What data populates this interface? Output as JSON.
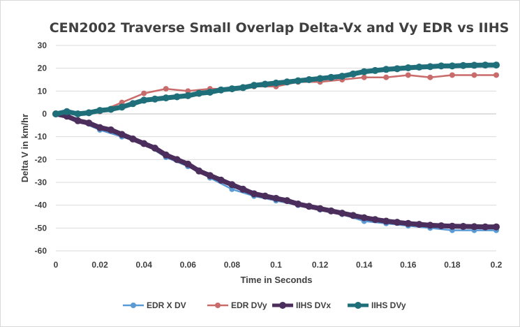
{
  "chart_data": {
    "type": "line",
    "title": "CEN2002 Traverse Small Overlap Delta-Vx and Vy EDR vs IIHS",
    "xlabel": "Time in Seconds",
    "ylabel": "Delta V in km/hr",
    "xlim": [
      0,
      0.2
    ],
    "ylim": [
      -60,
      30
    ],
    "x_ticks": [
      0,
      0.02,
      0.04,
      0.06,
      0.08,
      0.1,
      0.12,
      0.14,
      0.16,
      0.18,
      0.2
    ],
    "x_tick_labels": [
      "0",
      "0.02",
      "0.04",
      "0.06",
      "0.08",
      "0.1",
      "0.12",
      "0.14",
      "0.16",
      "0.18",
      "0.2"
    ],
    "y_ticks": [
      -60,
      -50,
      -40,
      -30,
      -20,
      -10,
      0,
      10,
      20,
      30
    ],
    "y_tick_labels": [
      "-60",
      "-50",
      "-40",
      "-30",
      "-20",
      "-10",
      "0",
      "10",
      "20",
      "30"
    ],
    "grid": true,
    "legend_position": "bottom",
    "series": [
      {
        "name": "EDR X DV",
        "color": "#5b9bd5",
        "style": "line-markers",
        "x": [
          0,
          0.01,
          0.02,
          0.03,
          0.04,
          0.05,
          0.06,
          0.07,
          0.08,
          0.09,
          0.1,
          0.11,
          0.12,
          0.13,
          0.14,
          0.15,
          0.16,
          0.17,
          0.18,
          0.19,
          0.2
        ],
        "values": [
          0,
          -3,
          -7,
          -10,
          -13,
          -19,
          -23,
          -28,
          -33,
          -36,
          -38,
          -40,
          -42,
          -44,
          -47,
          -48,
          -49,
          -50,
          -51,
          -51,
          -51
        ]
      },
      {
        "name": "EDR DVy",
        "color": "#c96b6b",
        "style": "line-markers",
        "x": [
          0,
          0.01,
          0.02,
          0.03,
          0.04,
          0.05,
          0.06,
          0.07,
          0.08,
          0.09,
          0.1,
          0.11,
          0.12,
          0.13,
          0.14,
          0.15,
          0.16,
          0.17,
          0.18,
          0.19,
          0.2
        ],
        "values": [
          0,
          0,
          1,
          5,
          9,
          11,
          10,
          11,
          11,
          12,
          12,
          14,
          14,
          15,
          16,
          16,
          17,
          16,
          17,
          17,
          17
        ]
      },
      {
        "name": "IIHS DVx",
        "color": "#4b2e5c",
        "style": "thick-markers",
        "x": [
          0,
          0.005,
          0.01,
          0.015,
          0.02,
          0.025,
          0.03,
          0.035,
          0.04,
          0.045,
          0.05,
          0.055,
          0.06,
          0.065,
          0.07,
          0.075,
          0.08,
          0.085,
          0.09,
          0.095,
          0.1,
          0.105,
          0.11,
          0.115,
          0.12,
          0.125,
          0.13,
          0.135,
          0.14,
          0.145,
          0.15,
          0.155,
          0.16,
          0.165,
          0.17,
          0.175,
          0.18,
          0.185,
          0.19,
          0.195,
          0.2
        ],
        "values": [
          0,
          -1,
          -3,
          -4,
          -6,
          -7,
          -9,
          -11,
          -13,
          -15,
          -18,
          -20,
          -22,
          -25,
          -27,
          -29,
          -31,
          -33,
          -35,
          -36,
          -37,
          -38,
          -39.5,
          -40.5,
          -41.5,
          -42.5,
          -43.5,
          -44.5,
          -45.5,
          -46.3,
          -47,
          -47.5,
          -48,
          -48.4,
          -48.8,
          -49,
          -49.2,
          -49.3,
          -49.4,
          -49.5,
          -49.5
        ]
      },
      {
        "name": "IIHS DVy",
        "color": "#1f6f7a",
        "style": "thick-markers",
        "x": [
          0,
          0.005,
          0.01,
          0.015,
          0.02,
          0.025,
          0.03,
          0.035,
          0.04,
          0.045,
          0.05,
          0.055,
          0.06,
          0.065,
          0.07,
          0.075,
          0.08,
          0.085,
          0.09,
          0.095,
          0.1,
          0.105,
          0.11,
          0.115,
          0.12,
          0.125,
          0.13,
          0.135,
          0.14,
          0.145,
          0.15,
          0.155,
          0.16,
          0.165,
          0.17,
          0.175,
          0.18,
          0.185,
          0.19,
          0.195,
          0.2
        ],
        "values": [
          0,
          1,
          0,
          0.5,
          1.5,
          2,
          3,
          4.5,
          6,
          6.5,
          7,
          7.5,
          8,
          9,
          9.5,
          10.5,
          11,
          11.5,
          12.5,
          13,
          13.5,
          14,
          14.5,
          15,
          15.5,
          16,
          16.5,
          17.5,
          18.5,
          19,
          19.5,
          19.8,
          20.2,
          20.5,
          20.7,
          21,
          21,
          21.2,
          21.3,
          21.4,
          21.4
        ]
      }
    ]
  }
}
